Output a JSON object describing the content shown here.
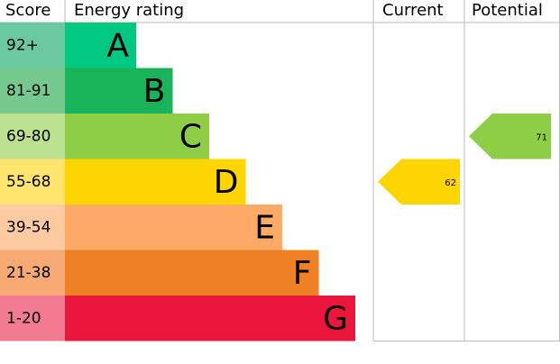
{
  "chart_data": {
    "type": "epc",
    "headers": [
      "Score",
      "Energy rating",
      "Current",
      "Potential"
    ],
    "bands": [
      {
        "score": "92+",
        "letter": "A",
        "color": "#00c781",
        "score_color": "#6bc9a0"
      },
      {
        "score": "81-91",
        "letter": "B",
        "color": "#19b459",
        "score_color": "#75c98f"
      },
      {
        "score": "69-80",
        "letter": "C",
        "color": "#8dce46",
        "score_color": "#bbe08f"
      },
      {
        "score": "55-68",
        "letter": "D",
        "color": "#ffd500",
        "score_color": "#ffe46d"
      },
      {
        "score": "39-54",
        "letter": "E",
        "color": "#fcaa65",
        "score_color": "#fdcaa2"
      },
      {
        "score": "21-38",
        "letter": "F",
        "color": "#ef8023",
        "score_color": "#f5aa74"
      },
      {
        "score": "1-20",
        "letter": "G",
        "color": "#e9153b",
        "score_color": "#f17b90"
      }
    ],
    "current": 62,
    "potential": 71
  }
}
